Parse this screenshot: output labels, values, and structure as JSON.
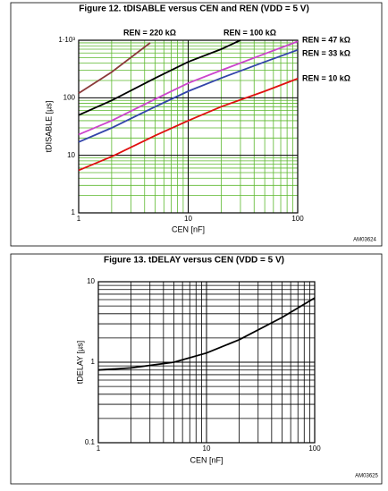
{
  "chart_data": [
    {
      "type": "line",
      "title": "Figure 12. tDISABLE versus CEN and REN (VDD = 5 V)",
      "x_label": "CEN [nF]",
      "y_label": "tDISABLE [µs]",
      "footnote": "AM03624",
      "xlog": true,
      "ylog": true,
      "grid": true,
      "grid_color": "#5cb82e",
      "xlim": [
        1,
        100
      ],
      "ylim": [
        1,
        1000
      ],
      "xticks": [
        1,
        10,
        100
      ],
      "yticks": [
        1,
        10,
        100,
        {
          "value": 1000,
          "label": "1·10³"
        }
      ],
      "series": [
        {
          "name": "REN = 220 kΩ",
          "color": "#8b3a3a",
          "x": [
            1,
            2,
            4.5
          ],
          "values": [
            120,
            280,
            900
          ]
        },
        {
          "name": "REN = 100 kΩ",
          "color": "#000000",
          "x": [
            1,
            2,
            5,
            10,
            20,
            30
          ],
          "values": [
            50,
            90,
            220,
            420,
            700,
            1000
          ]
        },
        {
          "name": "REN = 47 kΩ",
          "color": "#cc44cc",
          "x": [
            1,
            2,
            5,
            10,
            20,
            50,
            100
          ],
          "values": [
            23,
            40,
            95,
            180,
            300,
            580,
            950
          ]
        },
        {
          "name": "REN = 33 kΩ",
          "color": "#3344aa",
          "x": [
            1,
            2,
            5,
            10,
            20,
            50,
            100
          ],
          "values": [
            17,
            30,
            70,
            130,
            220,
            420,
            680
          ]
        },
        {
          "name": "REN = 10 kΩ",
          "color": "#e01010",
          "x": [
            1,
            2,
            5,
            10,
            20,
            50,
            100
          ],
          "values": [
            5.5,
            9.5,
            22,
            40,
            70,
            130,
            215
          ]
        }
      ]
    },
    {
      "type": "line",
      "title": "Figure 13. tDELAY versus CEN (VDD = 5 V)",
      "x_label": "CEN [nF]",
      "y_label": "tDELAY [µs]",
      "footnote": "AM03625",
      "xlog": true,
      "ylog": true,
      "grid": true,
      "grid_color": "#000000",
      "xlim": [
        1,
        100
      ],
      "ylim": [
        0.1,
        10
      ],
      "xticks": [
        1,
        10,
        100
      ],
      "yticks": [
        0.1,
        1,
        10
      ],
      "series": [
        {
          "color": "#000000",
          "x": [
            1,
            2,
            5,
            10,
            20,
            50,
            100
          ],
          "values": [
            0.8,
            0.85,
            1.0,
            1.3,
            1.9,
            3.6,
            6.3
          ]
        }
      ]
    }
  ]
}
